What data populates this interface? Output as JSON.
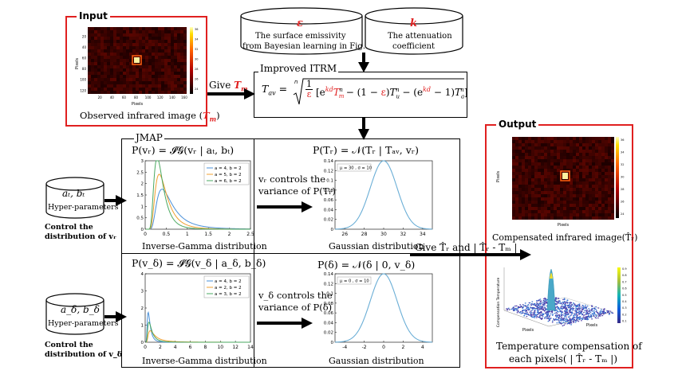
{
  "input": {
    "tag": "Input",
    "give_prefix": "Give",
    "give_symbol": "T",
    "give_sub": "m",
    "caption_prefix": "Observed infrared image (",
    "caption_symbol": "T",
    "caption_sub": "m",
    "caption_suffix": ")",
    "heatmap_ylabel": "Pixels",
    "heatmap_xlabel": "Pixels",
    "x_ticks": [
      "20",
      "40",
      "60",
      "80",
      "100",
      "120",
      "140",
      "160"
    ],
    "y_ticks": [
      "20",
      "40",
      "60",
      "80",
      "100",
      "120"
    ],
    "colorbar_ticks": [
      "36",
      "34",
      "32",
      "30",
      "28",
      "26",
      "24"
    ]
  },
  "cylinders": {
    "epsilon": {
      "symbol": "ε",
      "line1": "The surface emissivity",
      "line2": "from Bayesian learning in Fig.2"
    },
    "k": {
      "symbol": "k",
      "line1": "The attenuation",
      "line2": "coefficient"
    }
  },
  "itrm": {
    "title": "Improved ITRM",
    "lhs": "T",
    "lhs_sub": "av",
    "eq": "=",
    "root_index": "n",
    "frac_num": "1",
    "frac_den": "ε",
    "bracket_open": "[e",
    "exp1": "kd",
    "term1": "T",
    "term1_sub": "m",
    "term1_sup": "n",
    "minus1": " − (1 − ",
    "eps2": "ε",
    "close1": ")",
    "tu": "T",
    "tu_sub": "u",
    "tu_sup": "n",
    "minus2": " − (e",
    "exp2": "kd",
    "minus3": " − 1)",
    "ta": "T",
    "ta_sub": "a",
    "ta_sup": "n",
    "bracket_close": "]"
  },
  "jmap": {
    "title": "JMAP",
    "top_left_formula": "P(vᵣ) = 𝓘𝓖(vᵣ | aₜ, bₜ)",
    "top_right_formula": "P(Tᵣ) = 𝒩(Tᵣ | Tₐᵥ, vᵣ)",
    "bottom_left_formula": "P(v_δ) = 𝓘𝓖(v_δ | a_δ, b_δ)",
    "bottom_right_formula": "P(δ) = 𝒩(δ | 0, v_δ)",
    "arrow_top_line1": "vᵣ controls the",
    "arrow_top_line2": "variance of P(Tᵣ)",
    "arrow_bottom_line1": "v_δ controls the",
    "arrow_bottom_line2": "variance of P(δ)",
    "ig_caption": "Inverse-Gamma distribution",
    "gauss_caption": "Gaussian distribution"
  },
  "hyper_top": {
    "symbols": "aₜ, bₜ",
    "label": "Hyper-parameters",
    "control_line1": "Control the",
    "control_line2": "distribution of vᵣ"
  },
  "hyper_bottom": {
    "symbols": "a_δ, b_δ",
    "label": "Hyper-parameters",
    "control_line1": "Control the",
    "control_line2": "distribution of v_δ"
  },
  "output": {
    "tag": "Output",
    "give_text": "Give T̂ᵣ and | T̂ᵣ - Tₘ |",
    "caption1": "Compensated infrared image(T̂ᵣ)",
    "caption2_line1": "Temperature compensation of",
    "caption2_line2": "each pixels( | T̂ᵣ - Tₘ |)",
    "surface_zlabel": "Compensation Temperature",
    "surface_xlabel": "Pixels",
    "surface_ylabel": "Pixels",
    "heatmap_ylabel": "Pixels",
    "heatmap_xlabel": "Pixels",
    "colorbar_ticks": [
      "36",
      "34",
      "32",
      "30",
      "28",
      "26",
      "24"
    ],
    "surface_colorbar_ticks": [
      "0.9",
      "0.8",
      "0.7",
      "0.6",
      "0.5",
      "0.4",
      "0.3",
      "0.2",
      "0.1"
    ]
  },
  "chart_data": [
    {
      "type": "line",
      "name": "ig_top",
      "legend": [
        "a = 4, b = 2",
        "a = 5, b = 2",
        "a = 6, b = 2"
      ],
      "series": [
        {
          "a": 4,
          "b": 2,
          "color": "#4a90d9"
        },
        {
          "a": 5,
          "b": 2,
          "color": "#f0a030"
        },
        {
          "a": 6,
          "b": 2,
          "color": "#4aa860"
        }
      ],
      "xlim": [
        0,
        2.5
      ],
      "ylim": [
        0,
        3
      ],
      "x_ticks": [
        "0",
        "0.5",
        "1",
        "1.5",
        "2",
        "2.5"
      ],
      "y_ticks": [
        "0",
        "0.5",
        "1",
        "1.5",
        "2",
        "2.5",
        "3"
      ]
    },
    {
      "type": "line",
      "name": "gauss_top",
      "legend": [
        "μ = 30 , σ = 10"
      ],
      "mu": 30,
      "sigma": 10,
      "color": "#6aaed6",
      "xlim": [
        25,
        35
      ],
      "ylim": [
        0,
        0.14
      ],
      "x_ticks": [
        "26",
        "28",
        "30",
        "32",
        "34"
      ],
      "y_ticks": [
        "0",
        "0.02",
        "0.04",
        "0.06",
        "0.08",
        "0.1",
        "0.12",
        "0.14"
      ]
    },
    {
      "type": "line",
      "name": "ig_bottom",
      "legend": [
        "a = 4, b = 2",
        "a = 2, b = 2",
        "a = 3, b = 2"
      ],
      "series": [
        {
          "a": 4,
          "b": 2,
          "color": "#4a90d9"
        },
        {
          "a": 2,
          "b": 2,
          "color": "#f0a030"
        },
        {
          "a": 3,
          "b": 2,
          "color": "#4aa860"
        }
      ],
      "xlim": [
        0,
        14
      ],
      "ylim": [
        0,
        4
      ],
      "x_ticks": [
        "0",
        "2",
        "4",
        "6",
        "8",
        "10",
        "12",
        "14"
      ],
      "y_ticks": [
        "0",
        "1",
        "2",
        "3",
        "4"
      ]
    },
    {
      "type": "line",
      "name": "gauss_bottom",
      "legend": [
        "μ = 0 , σ = 10"
      ],
      "mu": 0,
      "sigma": 10,
      "color": "#6aaed6",
      "xlim": [
        -5,
        5
      ],
      "ylim": [
        0,
        0.14
      ],
      "x_ticks": [
        "-4",
        "-2",
        "0",
        "2",
        "4"
      ],
      "y_ticks": [
        "0",
        "0.02",
        "0.04",
        "0.06",
        "0.08",
        "0.1",
        "0.12",
        "0.14"
      ]
    }
  ]
}
